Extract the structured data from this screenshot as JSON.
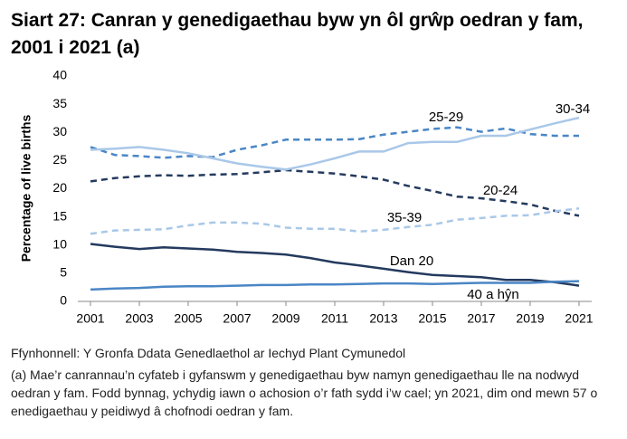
{
  "chart_data": {
    "type": "line",
    "title": "Siart 27: Canran y genedigaethau byw yn ôl grŵp oedran y fam, 2001 i 2021 (a)",
    "y_label": "Percentage of live births",
    "x": [
      2001,
      2002,
      2003,
      2004,
      2005,
      2006,
      2007,
      2008,
      2009,
      2010,
      2011,
      2012,
      2013,
      2014,
      2015,
      2016,
      2017,
      2018,
      2019,
      2020,
      2021
    ],
    "xlim": [
      2001,
      2021
    ],
    "xticks": [
      2001,
      2003,
      2005,
      2007,
      2009,
      2011,
      2013,
      2015,
      2017,
      2019,
      2021
    ],
    "ylim": [
      0,
      40
    ],
    "yticks": [
      0,
      5,
      10,
      15,
      20,
      25,
      30,
      35,
      40
    ],
    "grid": false,
    "series": [
      {
        "name": "Dan 20",
        "color": "#243a5e",
        "style": "solid",
        "values": [
          10.2,
          9.7,
          9.3,
          9.6,
          9.4,
          9.2,
          8.8,
          8.6,
          8.3,
          7.7,
          6.9,
          6.4,
          5.8,
          5.2,
          4.7,
          4.5,
          4.3,
          3.8,
          3.8,
          3.4,
          2.8
        ]
      },
      {
        "name": "20-24",
        "color": "#243a5e",
        "style": "dashed",
        "values": [
          21.3,
          21.9,
          22.2,
          22.4,
          22.3,
          22.5,
          22.6,
          22.9,
          23.3,
          23.0,
          22.7,
          22.2,
          21.6,
          20.5,
          19.6,
          18.6,
          18.3,
          17.8,
          17.2,
          16.1,
          15.2
        ]
      },
      {
        "name": "25-29",
        "color": "#4a86c5",
        "style": "dashed",
        "values": [
          27.4,
          26.0,
          25.8,
          25.5,
          25.8,
          25.6,
          26.9,
          27.7,
          28.7,
          28.7,
          28.7,
          28.8,
          29.6,
          30.1,
          30.6,
          30.9,
          30.1,
          30.7,
          29.7,
          29.4,
          29.4
        ]
      },
      {
        "name": "30-34",
        "color": "#a9c8e8",
        "style": "solid",
        "values": [
          26.9,
          27.1,
          27.4,
          26.9,
          26.3,
          25.4,
          24.5,
          23.9,
          23.4,
          24.3,
          25.4,
          26.6,
          26.6,
          28.1,
          28.3,
          28.3,
          29.4,
          29.4,
          30.5,
          31.6,
          32.6
        ]
      },
      {
        "name": "35-39",
        "color": "#a9c8e8",
        "style": "dashed",
        "values": [
          12.0,
          12.6,
          12.7,
          12.8,
          13.5,
          14.0,
          14.0,
          13.8,
          13.1,
          12.9,
          12.9,
          12.4,
          12.7,
          13.2,
          13.6,
          14.5,
          14.8,
          15.2,
          15.3,
          16.0,
          16.5
        ]
      },
      {
        "name": "40 a hŷn",
        "color": "#4a86c5",
        "style": "solid",
        "values": [
          2.1,
          2.3,
          2.4,
          2.6,
          2.7,
          2.7,
          2.8,
          2.9,
          2.9,
          3.0,
          3.0,
          3.1,
          3.2,
          3.2,
          3.1,
          3.2,
          3.3,
          3.3,
          3.3,
          3.5,
          3.6
        ]
      }
    ],
    "source": "Ffynhonnell: Y Gronfa Ddata Genedlaethol ar Iechyd Plant Cymunedol",
    "note": "(a) Mae’r canrannau’n cyfateb i gyfanswm y genedigaethau byw namyn genedigaethau lle na nodwyd oedran y fam. Fodd bynnag, ychydig iawn o achosion o’r fath sydd i’w cael; yn 2021, dim ond mewn 57 o enedigaethau y peidiwyd â chofnodi oedran y fam."
  }
}
